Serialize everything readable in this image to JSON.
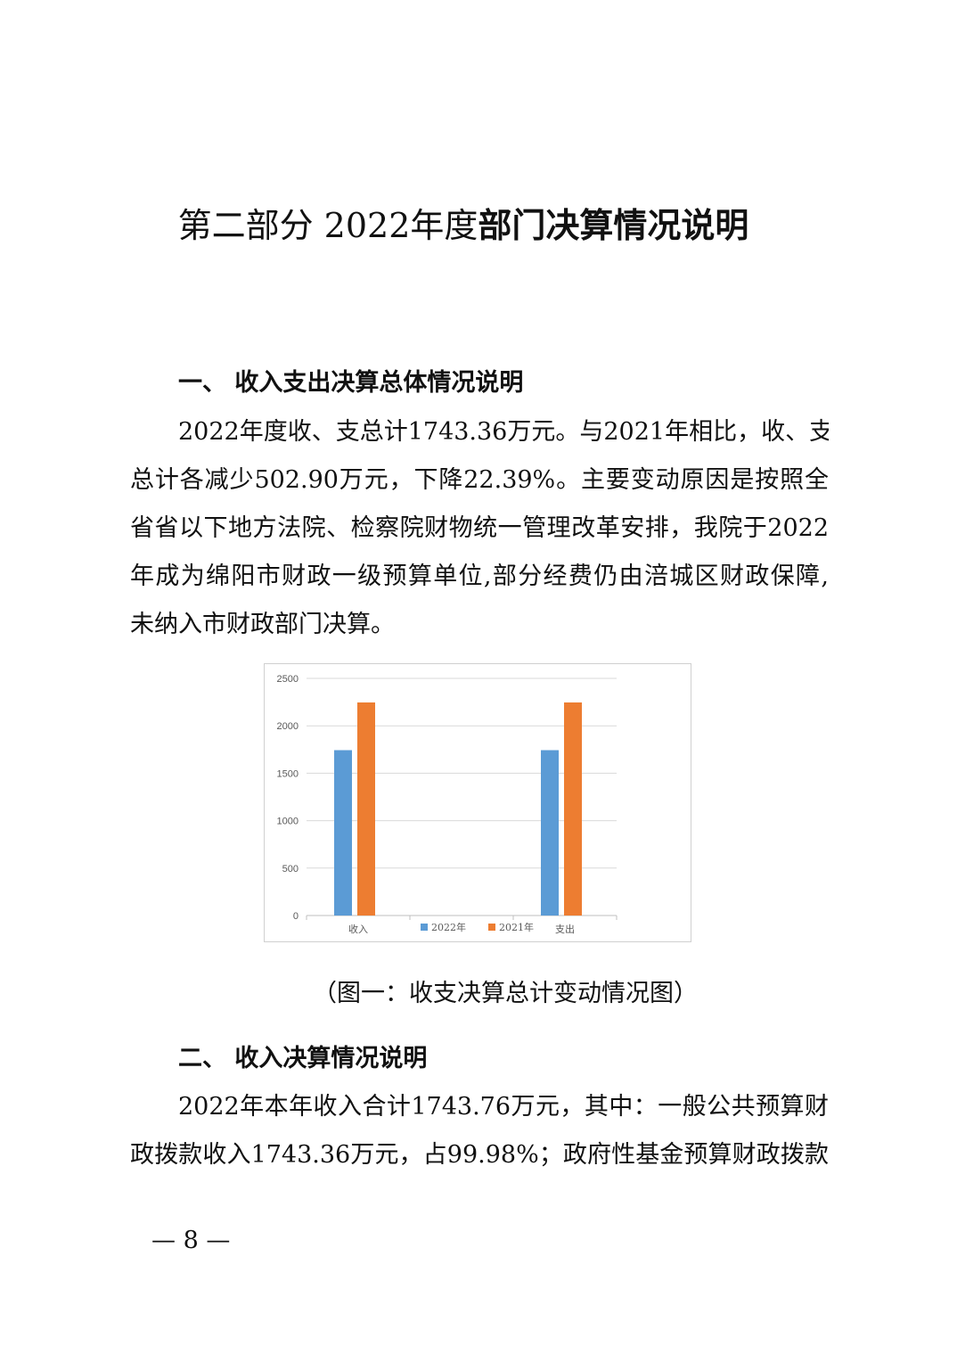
{
  "title": {
    "plain": "第二部分 2022年度",
    "bold": "部门决算情况说明"
  },
  "section1": {
    "heading": "一、 收入支出决算总体情况说明",
    "lines": [
      "2022年度收、支总计1743.36万元。与2021年相比，收、支",
      "总计各减少502.90万元，下降22.39%。主要变动原因是按照全",
      "省省以下地方法院、检察院财物统一管理改革安排，我院于2022",
      "年成为绵阳市财政一级预算单位,部分经费仍由涪城区财政保障,",
      "未纳入市财政部门决算。"
    ]
  },
  "chart_data": {
    "type": "bar",
    "categories": [
      "收入",
      "",
      "支出"
    ],
    "series": [
      {
        "name": "2022年",
        "color": "#5B9BD5",
        "values": [
          1743.36,
          null,
          1743.36
        ]
      },
      {
        "name": "2021年",
        "color": "#ED7D31",
        "values": [
          2246.26,
          null,
          2246.26
        ]
      }
    ],
    "ylim": [
      0,
      2500
    ],
    "yticks": [
      "0",
      "500",
      "1000",
      "1500",
      "2000",
      "2500"
    ],
    "grid": true,
    "legend": "bottom"
  },
  "caption": "（图一：收支决算总计变动情况图）",
  "section2": {
    "heading": "二、 收入决算情况说明",
    "lines": [
      "2022年本年收入合计1743.76万元，其中：一般公共预算财",
      "政拨款收入1743.36万元，占99.98%；政府性基金预算财政拨款"
    ]
  },
  "page_number": "— 8 —"
}
